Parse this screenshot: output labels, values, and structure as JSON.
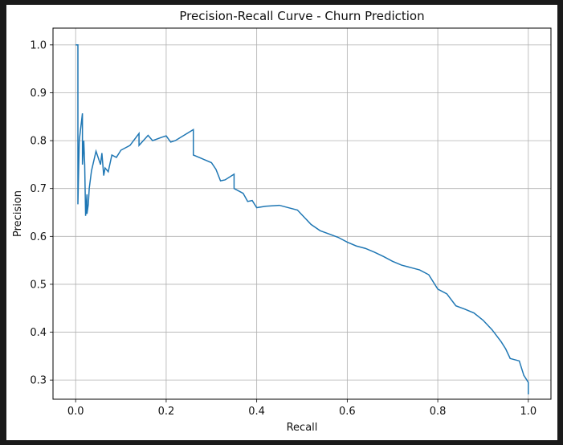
{
  "chart_data": {
    "type": "line",
    "title": "Precision-Recall Curve - Churn Prediction",
    "xlabel": "Recall",
    "ylabel": "Precision",
    "xlim": [
      -0.05,
      1.05
    ],
    "ylim": [
      0.26,
      1.035
    ],
    "x_ticks": [
      0.0,
      0.2,
      0.4,
      0.6,
      0.8,
      1.0
    ],
    "y_ticks": [
      0.3,
      0.4,
      0.5,
      0.6,
      0.7,
      0.8,
      0.9,
      1.0
    ],
    "x_tick_labels": [
      "0.0",
      "0.2",
      "0.4",
      "0.6",
      "0.8",
      "1.0"
    ],
    "y_tick_labels": [
      "0.3",
      "0.4",
      "0.5",
      "0.6",
      "0.7",
      "0.8",
      "0.9",
      "1.0"
    ],
    "grid": true,
    "colors": {
      "line": "#1f77b4",
      "grid": "#b0b0b0",
      "outer": "#1a1a1a",
      "plot_bg": "#ffffff"
    },
    "series": [
      {
        "x": [
          0.0,
          0.005,
          0.005,
          0.008,
          0.015,
          0.015,
          0.018,
          0.02,
          0.022,
          0.025,
          0.025,
          0.028,
          0.03,
          0.035,
          0.045,
          0.055,
          0.058,
          0.062,
          0.065,
          0.072,
          0.08,
          0.09,
          0.1,
          0.12,
          0.14,
          0.14,
          0.16,
          0.17,
          0.19,
          0.2,
          0.21,
          0.22,
          0.26,
          0.26,
          0.28,
          0.3,
          0.31,
          0.32,
          0.33,
          0.35,
          0.35,
          0.37,
          0.38,
          0.39,
          0.4,
          0.42,
          0.45,
          0.47,
          0.49,
          0.5,
          0.52,
          0.54,
          0.56,
          0.58,
          0.6,
          0.62,
          0.64,
          0.66,
          0.68,
          0.7,
          0.72,
          0.74,
          0.76,
          0.78,
          0.8,
          0.82,
          0.84,
          0.86,
          0.88,
          0.9,
          0.92,
          0.94,
          0.95,
          0.96,
          0.98,
          0.99,
          1.0,
          1.0
        ],
        "y": [
          1.0,
          1.0,
          0.667,
          0.8,
          0.857,
          0.75,
          0.8,
          0.75,
          0.643,
          0.688,
          0.647,
          0.667,
          0.7,
          0.737,
          0.778,
          0.75,
          0.774,
          0.727,
          0.743,
          0.735,
          0.77,
          0.765,
          0.78,
          0.79,
          0.815,
          0.79,
          0.811,
          0.8,
          0.807,
          0.81,
          0.797,
          0.8,
          0.823,
          0.77,
          0.762,
          0.754,
          0.74,
          0.716,
          0.718,
          0.73,
          0.7,
          0.69,
          0.673,
          0.675,
          0.66,
          0.663,
          0.665,
          0.66,
          0.655,
          0.645,
          0.625,
          0.612,
          0.605,
          0.598,
          0.588,
          0.58,
          0.575,
          0.567,
          0.558,
          0.548,
          0.54,
          0.535,
          0.53,
          0.52,
          0.49,
          0.48,
          0.455,
          0.448,
          0.44,
          0.425,
          0.405,
          0.38,
          0.365,
          0.345,
          0.34,
          0.31,
          0.295,
          0.27
        ]
      }
    ]
  }
}
